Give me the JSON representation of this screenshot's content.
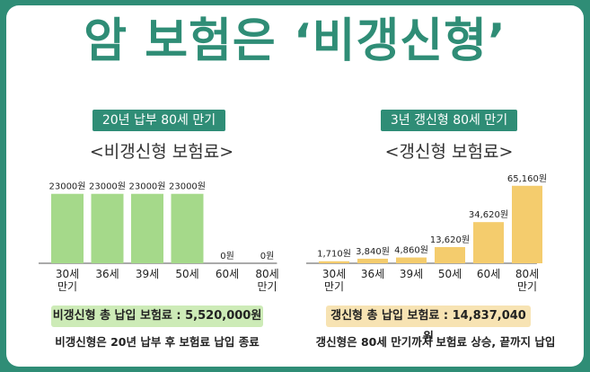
{
  "title": "암 보험은 ‘비갱신형’",
  "chart_data": [
    {
      "type": "bar",
      "badge": "20년 납부 80세 만기",
      "title": "<비갱신형 보험료>",
      "categories": [
        "30세\n만기",
        "36세",
        "39세",
        "50세",
        "60세",
        "80세\n만기"
      ],
      "values": [
        23000,
        23000,
        23000,
        23000,
        0,
        0
      ],
      "value_labels": [
        "23000원",
        "23000원",
        "23000원",
        "23000원",
        "0원",
        "0원"
      ],
      "ylim": [
        0,
        25000
      ],
      "grid": false,
      "color": "#a5d98a",
      "total_label": "비갱신형 총 납입 보험료 : 5,520,000원",
      "total_color": "#cdebb7",
      "note": "비갱신형은 20년 납부 후 보험료 납입 종료"
    },
    {
      "type": "bar",
      "badge": "3년 갱신형 80세 만기",
      "title": "<갱신형 보험료>",
      "categories": [
        "30세\n만기",
        "36세",
        "39세",
        "50세",
        "60세",
        "80세\n만기"
      ],
      "values": [
        1710,
        3840,
        4860,
        13620,
        34620,
        65160
      ],
      "value_labels": [
        "1,710원",
        "3,840원",
        "4,860원",
        "13,620원",
        "34,620원",
        "65,160원"
      ],
      "ylim": [
        0,
        68000
      ],
      "grid": false,
      "color": "#f4cc6d",
      "total_label": "갱신형 총 납입 보험료 : 14,837,040원",
      "total_color": "#f7e3b3",
      "note": "갱신형은 80세 만기까지 보험료 상승, 끝까지 납입"
    }
  ]
}
